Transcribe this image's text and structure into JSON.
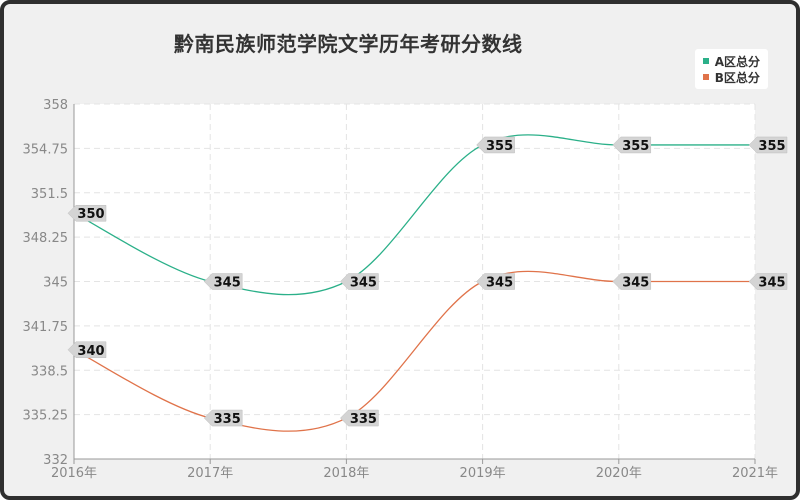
{
  "chart_data": {
    "type": "line",
    "title": "黔南民族师范学院文学历年考研分数线",
    "categories": [
      "2016年",
      "2017年",
      "2018年",
      "2019年",
      "2020年",
      "2021年"
    ],
    "series": [
      {
        "name": "A区总分",
        "values": [
          350,
          345,
          345,
          355,
          355,
          355
        ],
        "color": "#2bb089"
      },
      {
        "name": "B区总分",
        "values": [
          340,
          335,
          335,
          345,
          345,
          345
        ],
        "color": "#e0734a"
      }
    ],
    "y_ticks": [
      "358",
      "354.75",
      "351.5",
      "348.25",
      "345",
      "341.75",
      "338.5",
      "335.25",
      "332"
    ],
    "ylim": [
      332,
      358
    ],
    "grid": true,
    "legend_position": "top-right"
  }
}
